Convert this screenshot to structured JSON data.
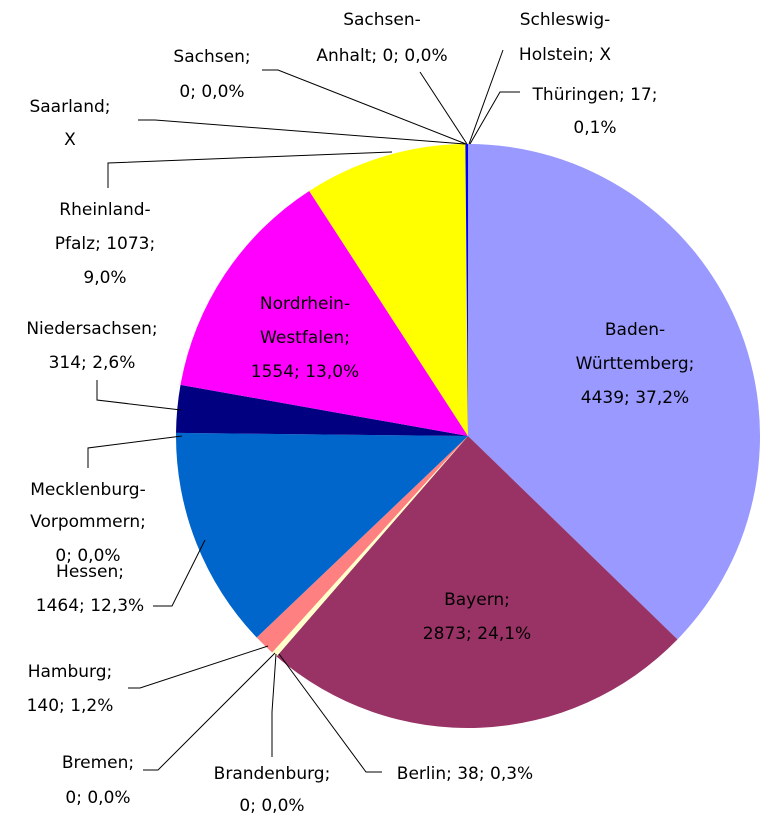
{
  "chart_data": {
    "type": "pie",
    "values": [
      4439,
      2873,
      38,
      0,
      0,
      140,
      1464,
      0,
      314,
      1554,
      1073,
      null,
      0,
      0,
      null,
      17
    ],
    "value_labels": [
      [
        "Baden-",
        "Württemberg;",
        "4439; 37,2%"
      ],
      [
        "Bayern;",
        "2873; 24,1%"
      ],
      [
        "Berlin; 38; 0,3%"
      ],
      [
        "Brandenburg;",
        "0; 0,0%"
      ],
      [
        "Bremen;",
        "0; 0,0%"
      ],
      [
        "Hamburg;",
        "140; 1,2%"
      ],
      [
        "Hessen;",
        "1464; 12,3%"
      ],
      [
        "Mecklenburg-",
        "Vorpommern;",
        "0; 0,0%"
      ],
      [
        "Niedersachsen;",
        "314; 2,6%"
      ],
      [
        "Nordrhein-",
        "Westfalen;",
        "1554; 13,0%"
      ],
      [
        "Rheinland-",
        "Pfalz; 1073;",
        "9,0%"
      ],
      [
        "Saarland;",
        "X"
      ],
      [
        "Sachsen;",
        "0; 0,0%"
      ],
      [
        "Sachsen-",
        "Anhalt; 0; 0,0%"
      ],
      [
        "Schleswig-",
        "Holstein; X"
      ],
      [
        "Thüringen; 17;",
        "0,1%"
      ]
    ],
    "colors": [
      "#9999ff",
      "#993366",
      "#ffffcc",
      "#ffffff",
      "#ffffff",
      "#ff8080",
      "#0066cc",
      "#ffffff",
      "#000080",
      "#ff00ff",
      "#ffff00",
      "#ffffff",
      "#ffffff",
      "#ffffff",
      "#ffffff",
      "#0000ff"
    ]
  }
}
